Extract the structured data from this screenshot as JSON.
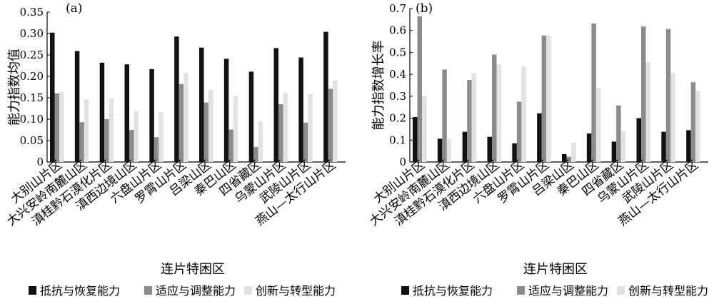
{
  "colors": {
    "s1": "#111111",
    "s2": "#8c8c8c",
    "s3": "#e6e1e1"
  },
  "chart_data": [
    {
      "type": "bar",
      "panel_label": "(a)",
      "xlabel": "连片特困区",
      "ylabel": "能力指数均值",
      "ylim": [
        0,
        0.35
      ],
      "yticks": [
        "0",
        "0.05",
        "0.10",
        "0.15",
        "0.20",
        "0.25",
        "0.30",
        "0.35"
      ],
      "categories": [
        "大别山片区",
        "大兴安岭南麓山区",
        "滇桂黔石漠化片区",
        "滇西边境山区",
        "六盘山片区",
        "罗霄山片区",
        "吕梁山区",
        "秦巴山区",
        "四省藏区",
        "乌蒙山片区",
        "武陵山片区",
        "燕山—太行山片区"
      ],
      "series": [
        {
          "name": "抵抗与恢复能力",
          "values": [
            0.302,
            0.259,
            0.232,
            0.228,
            0.217,
            0.293,
            0.267,
            0.241,
            0.211,
            0.266,
            0.244,
            0.304
          ]
        },
        {
          "name": "适应与调整能力",
          "values": [
            0.16,
            0.093,
            0.1,
            0.075,
            0.058,
            0.182,
            0.139,
            0.076,
            0.035,
            0.135,
            0.092,
            0.171
          ]
        },
        {
          "name": "创新与转型能力",
          "values": [
            0.163,
            0.146,
            0.148,
            0.119,
            0.116,
            0.208,
            0.168,
            0.154,
            0.095,
            0.161,
            0.158,
            0.19
          ]
        }
      ]
    },
    {
      "type": "bar",
      "panel_label": "(b)",
      "xlabel": "连片特困区",
      "ylabel": "能力指数增长率",
      "ylim": [
        0,
        0.7
      ],
      "yticks": [
        "0",
        "0.1",
        "0.2",
        "0.3",
        "0.4",
        "0.5",
        "0.6",
        "0.7"
      ],
      "categories": [
        "大别山片区",
        "大兴安岭南麓山区",
        "滇桂黔石漠化片区",
        "滇西边境山区",
        "六盘山片区",
        "罗霄山片区",
        "吕梁山区",
        "秦巴山区",
        "四省藏区",
        "乌蒙山片区",
        "武陵山片区",
        "燕山—太行山片区"
      ],
      "series": [
        {
          "name": "抵抗与恢复能力",
          "values": [
            0.205,
            0.106,
            0.138,
            0.115,
            0.085,
            0.222,
            0.036,
            0.13,
            0.093,
            0.2,
            0.138,
            0.145
          ]
        },
        {
          "name": "适应与调整能力",
          "values": [
            0.665,
            0.422,
            0.374,
            0.49,
            0.275,
            0.577,
            0.024,
            0.632,
            0.258,
            0.618,
            0.607,
            0.364
          ]
        },
        {
          "name": "创新与转型能力",
          "values": [
            0.3,
            0.105,
            0.405,
            0.445,
            0.437,
            0.577,
            0.088,
            0.337,
            0.14,
            0.455,
            0.405,
            0.325
          ]
        }
      ]
    }
  ]
}
